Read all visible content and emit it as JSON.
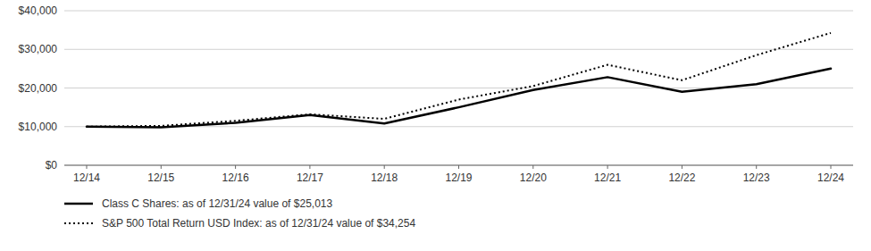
{
  "chart_data": {
    "type": "line",
    "categories": [
      "12/14",
      "12/15",
      "12/16",
      "12/17",
      "12/18",
      "12/19",
      "12/20",
      "12/21",
      "12/22",
      "12/23",
      "12/24"
    ],
    "series": [
      {
        "name": "Class C Shares: as of 12/31/24 value of $25,013",
        "color": "#000000",
        "line_style": "solid",
        "values": [
          10000,
          9800,
          11000,
          13000,
          10800,
          15000,
          19500,
          22800,
          19000,
          21000,
          25013
        ]
      },
      {
        "name": "S&P 500 Total Return USD Index: as of 12/31/24 value of $34,254",
        "color": "#000000",
        "line_style": "dotted",
        "values": [
          10000,
          10200,
          11500,
          13200,
          12000,
          17000,
          20500,
          26000,
          22000,
          28500,
          34254
        ]
      }
    ],
    "ylim": [
      0,
      40000
    ],
    "yticks": [
      {
        "value": 0,
        "label": "$0"
      },
      {
        "value": 10000,
        "label": "$10,000"
      },
      {
        "value": 20000,
        "label": "$20,000"
      },
      {
        "value": 30000,
        "label": "$30,000"
      },
      {
        "value": 40000,
        "label": "$40,000"
      }
    ],
    "grid": true,
    "legend": "bottom"
  }
}
